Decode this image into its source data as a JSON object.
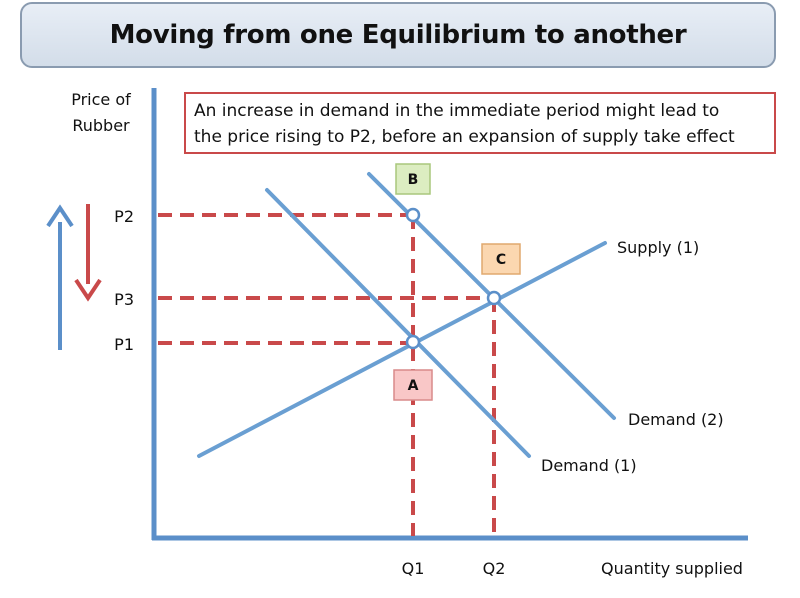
{
  "title": "Moving from one Equilibrium to another",
  "note": {
    "line1": "An increase in demand in the immediate period might lead to",
    "line2": "the price rising to P2, before an expansion of supply take effect"
  },
  "axes": {
    "y_label_line1": "Price of",
    "y_label_line2": "Rubber",
    "x_label": "Quantity supplied"
  },
  "price_labels": {
    "p2": "P2",
    "p3": "P3",
    "p1": "P1"
  },
  "quantity_labels": {
    "q1": "Q1",
    "q2": "Q2"
  },
  "curve_labels": {
    "supply1": "Supply (1)",
    "demand2": "Demand (2)",
    "demand1": "Demand (1)"
  },
  "points": {
    "a": {
      "label": "A",
      "color": "#f9c7c7"
    },
    "b": {
      "label": "B",
      "color": "#dcedc1"
    },
    "c": {
      "label": "C",
      "color": "#fbd7b0"
    }
  },
  "colors": {
    "axis": "#5b8fc9",
    "curve": "#6a9fd2",
    "dashed": "#c9494a",
    "up_arrow": "#5b8fc9",
    "down_arrow": "#c9494a"
  }
}
